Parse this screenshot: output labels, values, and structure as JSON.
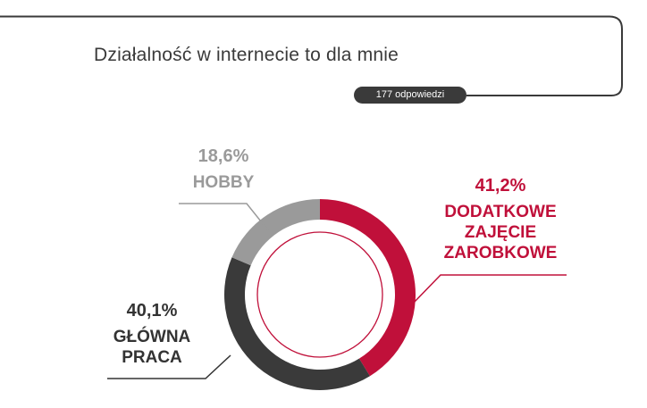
{
  "header": {
    "title": "Działalność w internecie to dla mnie",
    "responses": "177 odpowiedzi"
  },
  "chart_data": {
    "type": "pie",
    "title": "Działalność w internecie to dla mnie",
    "slices": [
      {
        "pct": "41,2%",
        "label_lines": [
          "DODATKOWE",
          "ZAJĘCIE",
          "ZAROBKOWE"
        ],
        "value": 41.2,
        "color": "#c0103a"
      },
      {
        "pct": "40,1%",
        "label_lines": [
          "GŁÓWNA",
          "PRACA"
        ],
        "value": 40.1,
        "color": "#3a3a3a"
      },
      {
        "pct": "18,6%",
        "label_lines": [
          "HOBBY"
        ],
        "value": 18.6,
        "color": "#9a9a9a"
      }
    ]
  }
}
